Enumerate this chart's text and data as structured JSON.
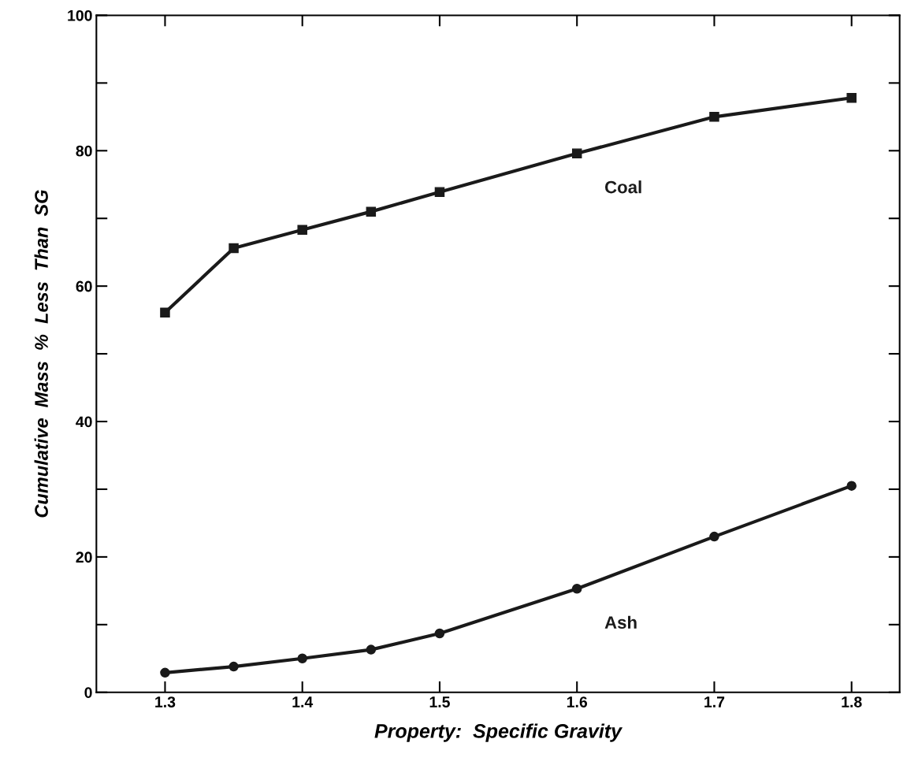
{
  "chart_data": {
    "type": "line",
    "xlabel": "Property:  Specific Gravity",
    "ylabel": "Cumulative  Mass  %  Less  Than  SG",
    "x": [
      1.3,
      1.35,
      1.4,
      1.45,
      1.5,
      1.6,
      1.7,
      1.8
    ],
    "series": [
      {
        "name": "Coal",
        "color": "#1a1a1a",
        "marker": "square",
        "values": [
          56.1,
          65.6,
          68.3,
          71.0,
          73.9,
          79.6,
          85.0,
          87.8
        ]
      },
      {
        "name": "Ash",
        "color": "#1a1a1a",
        "marker": "circle",
        "values": [
          2.9,
          3.8,
          5.0,
          6.3,
          8.7,
          15.3,
          23.0,
          30.5
        ]
      }
    ],
    "xlim": [
      1.25,
      1.835
    ],
    "ylim": [
      0,
      100
    ],
    "xticks": [
      1.3,
      1.4,
      1.5,
      1.6,
      1.7,
      1.8
    ],
    "yticks": [
      0,
      {
        "value": 10,
        "label": null
      },
      20,
      {
        "value": 30,
        "label": null
      },
      40,
      {
        "value": 50,
        "label": null
      },
      60,
      {
        "value": 70,
        "label": null
      },
      80,
      {
        "value": 90,
        "label": null
      },
      100
    ],
    "grid": false,
    "legend": false,
    "line_style": "solid"
  }
}
